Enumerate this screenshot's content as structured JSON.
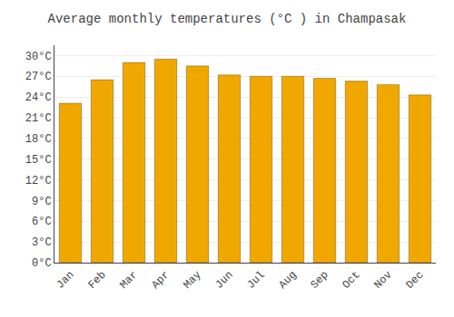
{
  "chart_data": {
    "type": "bar",
    "title": "Average monthly temperatures (°C ) in Champasak",
    "categories": [
      "Jan",
      "Feb",
      "Mar",
      "Apr",
      "May",
      "Jun",
      "Jul",
      "Aug",
      "Sep",
      "Oct",
      "Nov",
      "Dec"
    ],
    "values": [
      23.1,
      26.5,
      29.0,
      29.5,
      28.5,
      27.2,
      27.0,
      27.0,
      26.7,
      26.3,
      25.8,
      24.3
    ],
    "color": "#F0A800",
    "ylim": [
      0,
      31.5
    ],
    "yticks": [
      {
        "value": 0,
        "label": "0°C"
      },
      {
        "value": 3,
        "label": "3°C"
      },
      {
        "value": 6,
        "label": "6°C"
      },
      {
        "value": 9,
        "label": "9°C"
      },
      {
        "value": 12,
        "label": "12°C"
      },
      {
        "value": 15,
        "label": "15°C"
      },
      {
        "value": 18,
        "label": "18°C"
      },
      {
        "value": 21,
        "label": "21°C"
      },
      {
        "value": 24,
        "label": "24°C"
      },
      {
        "value": 27,
        "label": "27°C"
      },
      {
        "value": 30,
        "label": "30°C"
      }
    ],
    "grid": true
  }
}
